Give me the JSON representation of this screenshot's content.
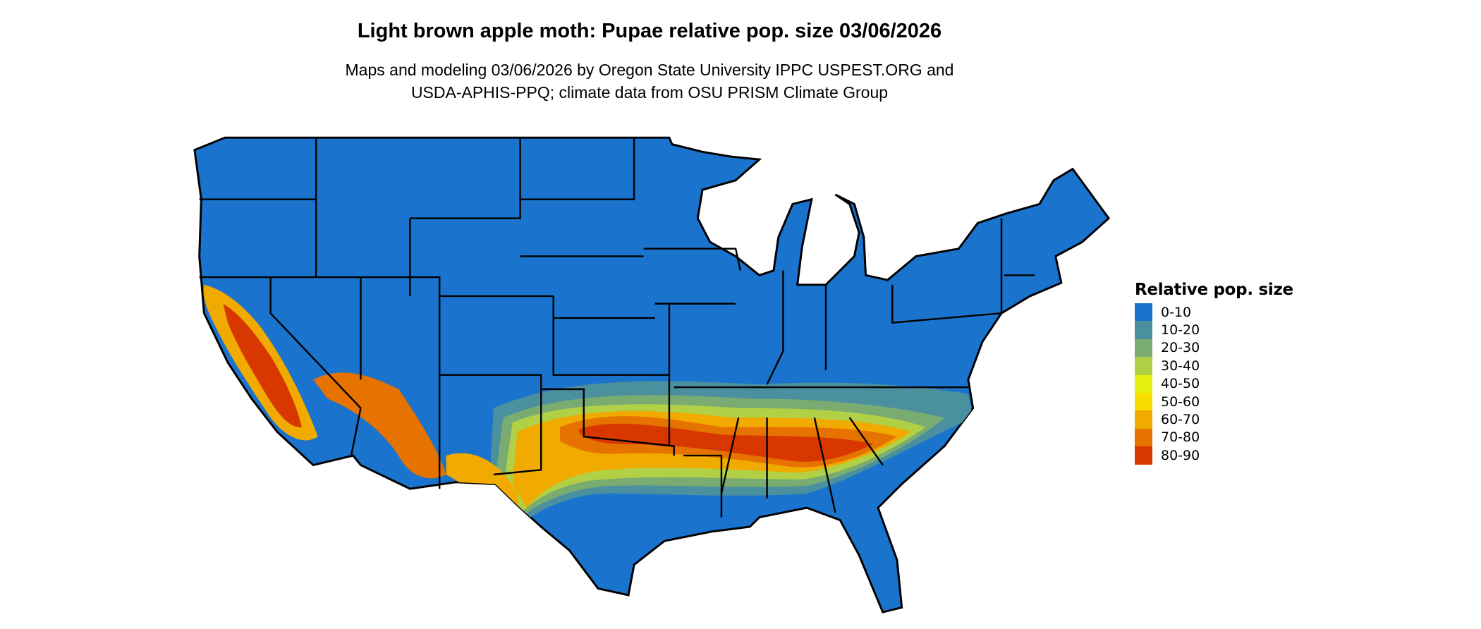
{
  "title": "Light brown apple moth: Pupae relative pop. size 03/06/2026",
  "subtitle_lines": [
    "Maps and modeling 03/06/2026 by Oregon State University IPPC USPEST.ORG and",
    "USDA-APHIS-PPQ; climate data from OSU PRISM Climate Group"
  ],
  "legend": {
    "title": "Relative pop. size",
    "items": [
      {
        "label": "0-10",
        "color": "#1a73cc"
      },
      {
        "label": "10-20",
        "color": "#4a909f"
      },
      {
        "label": "20-30",
        "color": "#7aac72"
      },
      {
        "label": "30-40",
        "color": "#b2d046"
      },
      {
        "label": "40-50",
        "color": "#e4ef12"
      },
      {
        "label": "50-60",
        "color": "#f8de00"
      },
      {
        "label": "60-70",
        "color": "#f0aa00"
      },
      {
        "label": "70-80",
        "color": "#e67200"
      },
      {
        "label": "80-90",
        "color": "#d83800"
      }
    ]
  }
}
